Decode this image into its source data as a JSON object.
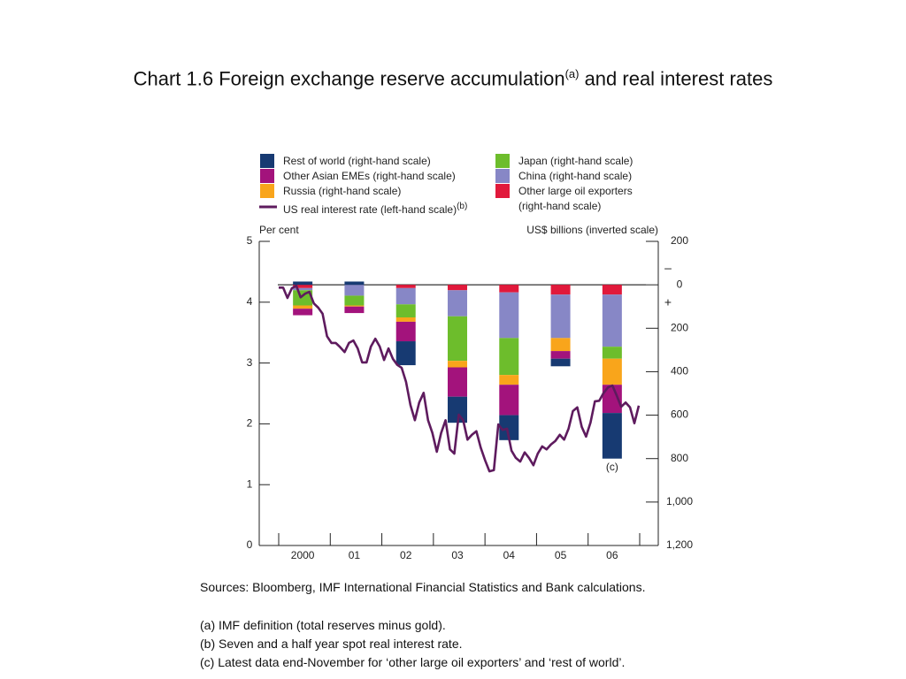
{
  "chart_data": {
    "type": "bar",
    "title": "Chart 1.6  Foreign exchange reserve accumulation",
    "title_superscript": "(a)",
    "title_end": " and real interest rates",
    "ylabel": "Per cent",
    "y2label": "US$ billions (inverted scale)",
    "y2_negative_label": "–",
    "y2_positive_label": "+",
    "categories": [
      "2000",
      "01",
      "02",
      "03",
      "04",
      "05",
      "06"
    ],
    "ylim": [
      0,
      5
    ],
    "yticks": [
      0,
      1,
      2,
      3,
      4,
      5
    ],
    "y2lim": [
      -200,
      1200
    ],
    "y2_inverted": true,
    "y2ticks": [
      {
        "value": -200,
        "label": "200"
      },
      0,
      200,
      400,
      600,
      800,
      {
        "value": 1000,
        "label": "1,000"
      },
      {
        "value": 1200,
        "label": "1,200"
      }
    ],
    "series": [
      {
        "name": "Rest of world (right-hand scale)",
        "color": "#173a72",
        "axis": "y2",
        "values": [
          -15,
          -15,
          110,
          120,
          115,
          35,
          210
        ]
      },
      {
        "name": "Other Asian EMEs (right-hand scale)",
        "color": "#a3137c",
        "axis": "y2",
        "values": [
          30,
          30,
          90,
          135,
          140,
          35,
          130
        ]
      },
      {
        "name": "Russia (right-hand scale)",
        "color": "#f9a51b",
        "axis": "y2",
        "values": [
          15,
          5,
          20,
          30,
          45,
          60,
          120
        ]
      },
      {
        "name": "Japan (right-hand scale)",
        "color": "#6dbd2c",
        "axis": "y2",
        "values": [
          70,
          45,
          60,
          205,
          170,
          0,
          55
        ]
      },
      {
        "name": "China (right-hand scale)",
        "color": "#8787c6",
        "axis": "y2",
        "values": [
          10,
          50,
          75,
          120,
          210,
          200,
          240
        ]
      },
      {
        "name": "Other large oil exporters (right-hand scale)",
        "color": "#e1193b",
        "axis": "y2",
        "values": [
          15,
          0,
          15,
          25,
          35,
          45,
          45
        ]
      }
    ],
    "line_series": {
      "type": "line",
      "name": "US real interest rate (left-hand scale)",
      "name_note": "(b)",
      "color": "#5e1b5e",
      "values": [
        4.24,
        4.24,
        4.07,
        4.23,
        4.27,
        4.08,
        4.14,
        4.17,
        3.98,
        3.91,
        3.81,
        3.44,
        3.33,
        3.33,
        3.26,
        3.18,
        3.33,
        3.37,
        3.24,
        3.01,
        3.01,
        3.27,
        3.4,
        3.27,
        3.05,
        3.24,
        3.07,
        2.97,
        2.92,
        2.69,
        2.31,
        2.06,
        2.35,
        2.51,
        2.06,
        1.85,
        1.54,
        1.85,
        2.06,
        1.58,
        1.51,
        2.15,
        2.06,
        1.74,
        1.82,
        1.88,
        1.61,
        1.4,
        1.22,
        1.24,
        1.99,
        1.9,
        1.92,
        1.56,
        1.44,
        1.38,
        1.53,
        1.44,
        1.32,
        1.51,
        1.63,
        1.58,
        1.66,
        1.72,
        1.82,
        1.74,
        1.92,
        2.21,
        2.27,
        1.95,
        1.79,
        2.02,
        2.37,
        2.38,
        2.51,
        2.6,
        2.63,
        2.46,
        2.28,
        2.35,
        2.27,
        2.01,
        2.3
      ]
    },
    "annotation": "(c)",
    "sources": "Sources:  Bloomberg, IMF International Financial Statistics and Bank calculations.",
    "notes": [
      "(a) IMF definition (total reserves minus gold).",
      "(b) Seven and a half year spot real interest rate.",
      "(c) Latest data end-November for ‘other large oil exporters’ and ‘rest of world’."
    ]
  }
}
